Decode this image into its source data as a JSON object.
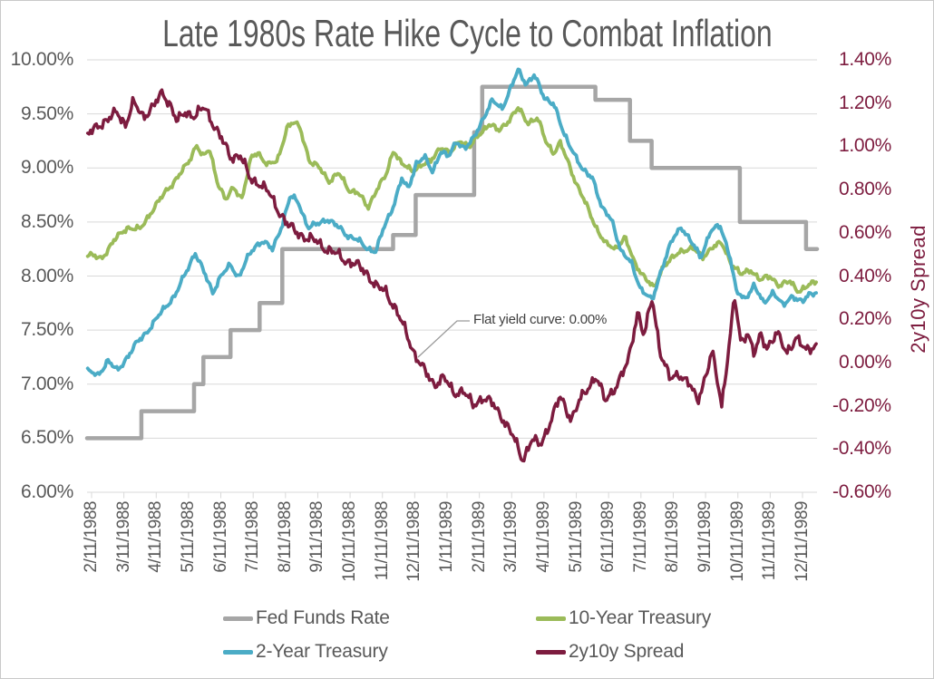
{
  "chart_data": {
    "type": "line",
    "title": "Late 1980s Rate Hike Cycle to Combat Inflation",
    "background": "#ffffff",
    "gridline_color": "#d9d9d9",
    "text_color": "#595959",
    "x_axis": {
      "tick_labels": [
        "2/11/1988",
        "3/11/1988",
        "4/11/1988",
        "5/11/1988",
        "6/11/1988",
        "7/11/1988",
        "8/11/1988",
        "9/11/1988",
        "10/11/1988",
        "11/11/1988",
        "12/11/1988",
        "1/11/1989",
        "2/11/1989",
        "3/11/1989",
        "4/11/1989",
        "5/11/1989",
        "6/11/1989",
        "7/11/1989",
        "8/11/1989",
        "9/11/1989",
        "10/11/1989",
        "11/11/1989",
        "12/11/1989"
      ]
    },
    "left_axis": {
      "min": 6.0,
      "max": 10.0,
      "labels": [
        "10.00%",
        "9.50%",
        "9.00%",
        "8.50%",
        "8.00%",
        "7.50%",
        "7.00%",
        "6.50%",
        "6.00%"
      ]
    },
    "right_axis": {
      "title": "2y10y Spread",
      "min": -0.6,
      "max": 1.4,
      "color": "#7d1c3f",
      "labels": [
        "1.40%",
        "1.20%",
        "1.00%",
        "0.80%",
        "0.60%",
        "0.40%",
        "0.20%",
        "0.00%",
        "-0.20%",
        "-0.40%",
        "-0.60%"
      ]
    },
    "annotation": {
      "text": "Flat yield curve: 0.00%"
    },
    "series": [
      {
        "name": "Fed Funds Rate",
        "color": "#a6a6a6",
        "axis": "left",
        "style": "step",
        "width": 4.5,
        "steps": [
          [
            -0.14,
            6.5
          ],
          [
            1.54,
            6.75
          ],
          [
            3.17,
            7.0
          ],
          [
            3.46,
            7.25
          ],
          [
            4.3,
            7.5
          ],
          [
            5.2,
            7.75
          ],
          [
            5.9,
            8.25
          ],
          [
            9.33,
            8.38
          ],
          [
            10.03,
            8.75
          ],
          [
            11.84,
            9.33
          ],
          [
            12.09,
            9.75
          ],
          [
            15.59,
            9.63
          ],
          [
            16.66,
            9.25
          ],
          [
            17.33,
            9.0
          ],
          [
            20.06,
            8.5
          ],
          [
            22.11,
            8.25
          ]
        ],
        "end": 22.45
      },
      {
        "name": "10-Year Treasury",
        "color": "#9bbb59",
        "axis": "left",
        "style": "noisy",
        "width": 3.8,
        "noise": 0.03,
        "seed": 1,
        "anchors": [
          [
            -0.12,
            8.2
          ],
          [
            0.3,
            8.16
          ],
          [
            0.7,
            8.33
          ],
          [
            1.1,
            8.45
          ],
          [
            1.5,
            8.43
          ],
          [
            1.9,
            8.62
          ],
          [
            2.3,
            8.78
          ],
          [
            2.7,
            8.93
          ],
          [
            3.0,
            9.05
          ],
          [
            3.25,
            9.22
          ],
          [
            3.45,
            9.1
          ],
          [
            3.65,
            9.17
          ],
          [
            3.9,
            8.87
          ],
          [
            4.15,
            8.7
          ],
          [
            4.4,
            8.82
          ],
          [
            4.65,
            8.72
          ],
          [
            4.95,
            9.1
          ],
          [
            5.15,
            9.14
          ],
          [
            5.45,
            9.03
          ],
          [
            5.75,
            9.06
          ],
          [
            6.05,
            9.38
          ],
          [
            6.25,
            9.42
          ],
          [
            6.45,
            9.37
          ],
          [
            6.75,
            9.06
          ],
          [
            7.05,
            9.0
          ],
          [
            7.35,
            8.88
          ],
          [
            7.65,
            8.95
          ],
          [
            7.95,
            8.8
          ],
          [
            8.25,
            8.77
          ],
          [
            8.55,
            8.63
          ],
          [
            8.85,
            8.82
          ],
          [
            9.1,
            8.92
          ],
          [
            9.35,
            9.17
          ],
          [
            9.6,
            9.04
          ],
          [
            9.9,
            8.97
          ],
          [
            10.2,
            9.03
          ],
          [
            10.5,
            9.06
          ],
          [
            10.8,
            9.2
          ],
          [
            11.1,
            9.13
          ],
          [
            11.4,
            9.26
          ],
          [
            11.7,
            9.19
          ],
          [
            12.0,
            9.31
          ],
          [
            12.3,
            9.41
          ],
          [
            12.6,
            9.34
          ],
          [
            12.9,
            9.44
          ],
          [
            13.2,
            9.55
          ],
          [
            13.5,
            9.42
          ],
          [
            13.8,
            9.46
          ],
          [
            14.05,
            9.25
          ],
          [
            14.3,
            9.14
          ],
          [
            14.5,
            9.23
          ],
          [
            14.75,
            9.05
          ],
          [
            15.0,
            8.86
          ],
          [
            15.3,
            8.66
          ],
          [
            15.6,
            8.46
          ],
          [
            15.9,
            8.3
          ],
          [
            16.2,
            8.25
          ],
          [
            16.5,
            8.36
          ],
          [
            16.8,
            8.12
          ],
          [
            17.1,
            8.0
          ],
          [
            17.4,
            7.88
          ],
          [
            17.7,
            8.1
          ],
          [
            18.0,
            8.17
          ],
          [
            18.3,
            8.24
          ],
          [
            18.6,
            8.26
          ],
          [
            18.9,
            8.17
          ],
          [
            19.2,
            8.27
          ],
          [
            19.5,
            8.3
          ],
          [
            19.8,
            8.12
          ],
          [
            20.1,
            8.01
          ],
          [
            20.4,
            8.06
          ],
          [
            20.7,
            7.96
          ],
          [
            21.0,
            8.0
          ],
          [
            21.3,
            7.91
          ],
          [
            21.6,
            7.95
          ],
          [
            21.9,
            7.86
          ],
          [
            22.2,
            7.91
          ],
          [
            22.45,
            7.96
          ]
        ]
      },
      {
        "name": "2-Year Treasury",
        "color": "#4bacc6",
        "axis": "left",
        "style": "noisy",
        "width": 3.8,
        "noise": 0.03,
        "seed": 2,
        "anchors": [
          [
            -0.12,
            7.12
          ],
          [
            0.2,
            7.08
          ],
          [
            0.5,
            7.22
          ],
          [
            0.8,
            7.12
          ],
          [
            1.1,
            7.25
          ],
          [
            1.4,
            7.38
          ],
          [
            1.7,
            7.48
          ],
          [
            2.0,
            7.6
          ],
          [
            2.3,
            7.72
          ],
          [
            2.6,
            7.83
          ],
          [
            2.9,
            8.02
          ],
          [
            3.2,
            8.22
          ],
          [
            3.5,
            8.02
          ],
          [
            3.75,
            7.85
          ],
          [
            4.0,
            8.0
          ],
          [
            4.3,
            8.1
          ],
          [
            4.55,
            7.99
          ],
          [
            4.8,
            8.15
          ],
          [
            5.05,
            8.27
          ],
          [
            5.3,
            8.33
          ],
          [
            5.6,
            8.24
          ],
          [
            5.9,
            8.48
          ],
          [
            6.15,
            8.74
          ],
          [
            6.4,
            8.68
          ],
          [
            6.7,
            8.45
          ],
          [
            7.0,
            8.48
          ],
          [
            7.3,
            8.53
          ],
          [
            7.6,
            8.46
          ],
          [
            7.9,
            8.38
          ],
          [
            8.2,
            8.34
          ],
          [
            8.5,
            8.26
          ],
          [
            8.8,
            8.23
          ],
          [
            9.05,
            8.45
          ],
          [
            9.3,
            8.62
          ],
          [
            9.6,
            8.9
          ],
          [
            9.8,
            8.8
          ],
          [
            10.05,
            9.05
          ],
          [
            10.3,
            9.1
          ],
          [
            10.55,
            8.96
          ],
          [
            10.8,
            9.16
          ],
          [
            11.05,
            9.1
          ],
          [
            11.3,
            9.25
          ],
          [
            11.55,
            9.18
          ],
          [
            11.8,
            9.26
          ],
          [
            12.1,
            9.45
          ],
          [
            12.4,
            9.62
          ],
          [
            12.7,
            9.55
          ],
          [
            13.0,
            9.76
          ],
          [
            13.2,
            9.9
          ],
          [
            13.45,
            9.78
          ],
          [
            13.7,
            9.86
          ],
          [
            14.0,
            9.65
          ],
          [
            14.3,
            9.6
          ],
          [
            14.6,
            9.32
          ],
          [
            14.9,
            9.16
          ],
          [
            15.2,
            8.97
          ],
          [
            15.5,
            8.92
          ],
          [
            15.8,
            8.62
          ],
          [
            16.1,
            8.52
          ],
          [
            16.4,
            8.22
          ],
          [
            16.7,
            8.12
          ],
          [
            17.0,
            7.88
          ],
          [
            17.35,
            7.77
          ],
          [
            17.65,
            8.08
          ],
          [
            17.95,
            8.32
          ],
          [
            18.25,
            8.46
          ],
          [
            18.55,
            8.32
          ],
          [
            18.85,
            8.17
          ],
          [
            19.15,
            8.42
          ],
          [
            19.45,
            8.46
          ],
          [
            19.75,
            8.2
          ],
          [
            19.95,
            7.86
          ],
          [
            20.2,
            7.78
          ],
          [
            20.5,
            7.92
          ],
          [
            20.8,
            7.74
          ],
          [
            21.1,
            7.86
          ],
          [
            21.4,
            7.72
          ],
          [
            21.7,
            7.82
          ],
          [
            22.0,
            7.76
          ],
          [
            22.2,
            7.82
          ],
          [
            22.45,
            7.86
          ]
        ]
      },
      {
        "name": "2y10y Spread",
        "color": "#7d1c3f",
        "axis": "right",
        "style": "noisy",
        "width": 3.5,
        "noise": 0.028,
        "seed": 3,
        "anchors": [
          [
            -0.12,
            1.05
          ],
          [
            0.2,
            1.1
          ],
          [
            0.5,
            1.12
          ],
          [
            0.8,
            1.16
          ],
          [
            1.05,
            1.1
          ],
          [
            1.3,
            1.2
          ],
          [
            1.6,
            1.14
          ],
          [
            1.9,
            1.18
          ],
          [
            2.2,
            1.25
          ],
          [
            2.45,
            1.19
          ],
          [
            2.65,
            1.11
          ],
          [
            2.9,
            1.16
          ],
          [
            3.2,
            1.14
          ],
          [
            3.5,
            1.18
          ],
          [
            3.75,
            1.11
          ],
          [
            4.0,
            1.04
          ],
          [
            4.3,
            0.95
          ],
          [
            4.6,
            0.96
          ],
          [
            4.9,
            0.85
          ],
          [
            5.2,
            0.83
          ],
          [
            5.5,
            0.78
          ],
          [
            5.8,
            0.7
          ],
          [
            6.1,
            0.63
          ],
          [
            6.4,
            0.6
          ],
          [
            6.7,
            0.57
          ],
          [
            7.0,
            0.56
          ],
          [
            7.3,
            0.52
          ],
          [
            7.6,
            0.5
          ],
          [
            7.9,
            0.47
          ],
          [
            8.2,
            0.45
          ],
          [
            8.5,
            0.42
          ],
          [
            8.8,
            0.35
          ],
          [
            9.1,
            0.33
          ],
          [
            9.4,
            0.25
          ],
          [
            9.7,
            0.15
          ],
          [
            10.0,
            0.04
          ],
          [
            10.3,
            -0.04
          ],
          [
            10.6,
            -0.1
          ],
          [
            10.9,
            -0.07
          ],
          [
            11.2,
            -0.14
          ],
          [
            11.5,
            -0.13
          ],
          [
            11.8,
            -0.2
          ],
          [
            12.1,
            -0.16
          ],
          [
            12.4,
            -0.19
          ],
          [
            12.7,
            -0.25
          ],
          [
            13.0,
            -0.33
          ],
          [
            13.35,
            -0.45
          ],
          [
            13.6,
            -0.36
          ],
          [
            13.9,
            -0.38
          ],
          [
            14.2,
            -0.27
          ],
          [
            14.5,
            -0.16
          ],
          [
            14.85,
            -0.26
          ],
          [
            15.1,
            -0.18
          ],
          [
            15.6,
            -0.06
          ],
          [
            15.9,
            -0.18
          ],
          [
            16.3,
            -0.09
          ],
          [
            16.6,
            0.0
          ],
          [
            16.9,
            0.24
          ],
          [
            17.1,
            0.12
          ],
          [
            17.35,
            0.3
          ],
          [
            17.6,
            0.05
          ],
          [
            17.9,
            -0.08
          ],
          [
            18.2,
            -0.05
          ],
          [
            18.5,
            -0.1
          ],
          [
            18.75,
            -0.18
          ],
          [
            19.0,
            -0.06
          ],
          [
            19.2,
            0.05
          ],
          [
            19.5,
            -0.2
          ],
          [
            19.9,
            0.3
          ],
          [
            20.1,
            0.08
          ],
          [
            20.3,
            0.15
          ],
          [
            20.5,
            0.04
          ],
          [
            20.7,
            0.12
          ],
          [
            20.9,
            0.07
          ],
          [
            21.2,
            0.14
          ],
          [
            21.5,
            0.04
          ],
          [
            21.8,
            0.12
          ],
          [
            22.1,
            0.05
          ],
          [
            22.45,
            0.09
          ]
        ]
      }
    ]
  }
}
